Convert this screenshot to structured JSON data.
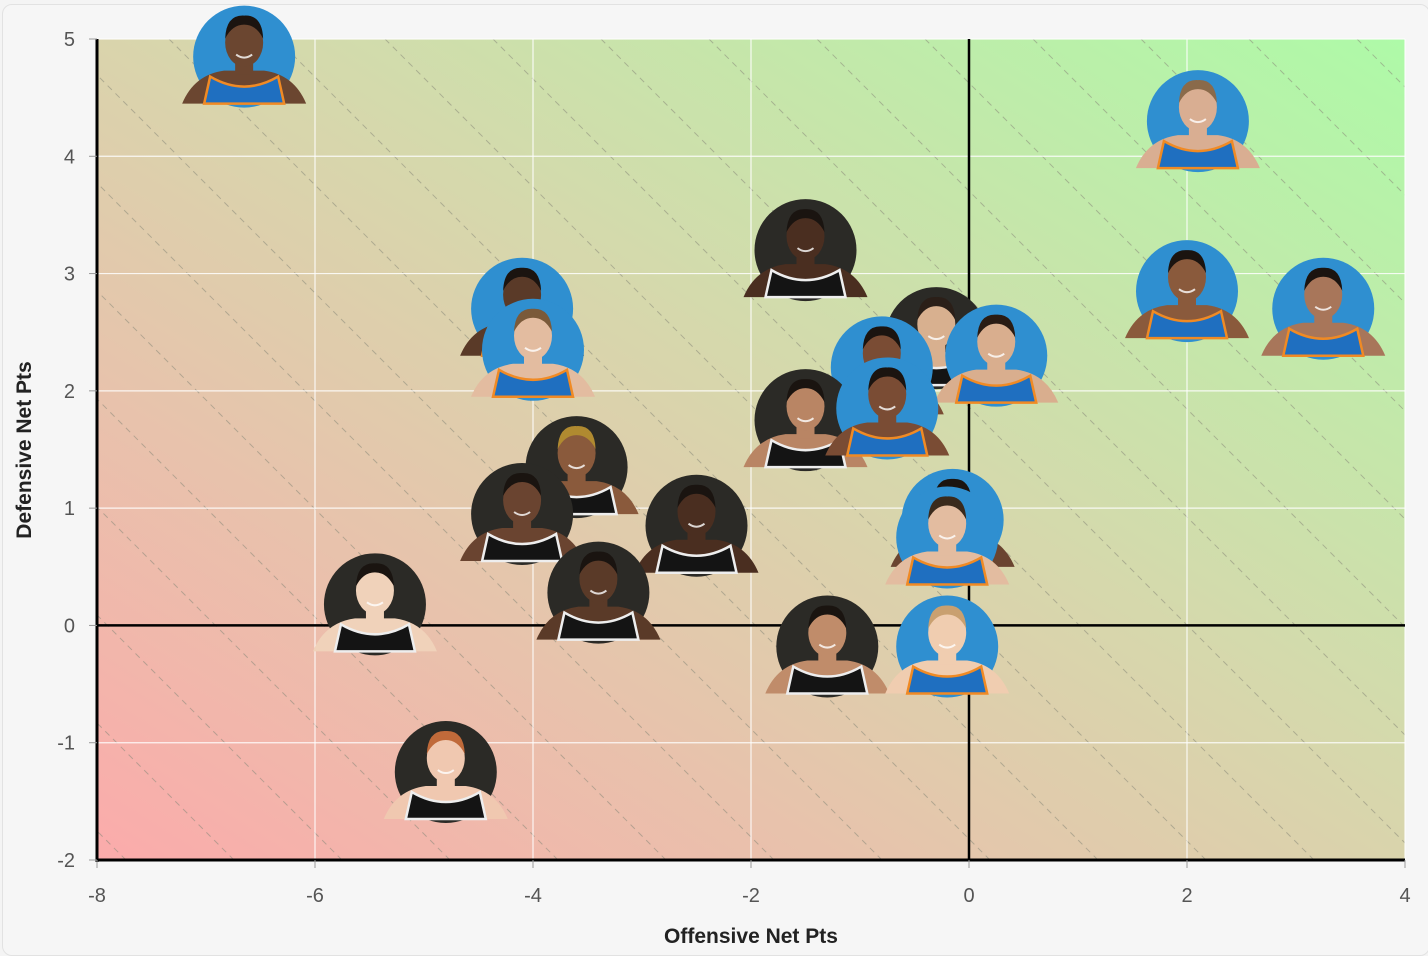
{
  "chart_data": {
    "type": "scatter",
    "xlabel": "Offensive Net Pts",
    "ylabel": "Defensive Net Pts",
    "xlim": [
      -8,
      4
    ],
    "ylim": [
      -2,
      5
    ],
    "xticks": [
      "-8",
      "-6",
      "-4",
      "-2",
      "0",
      "2",
      "4"
    ],
    "yticks": [
      "-2",
      "-1",
      "0",
      "1",
      "2",
      "3",
      "4",
      "5"
    ],
    "grid": true,
    "background": "diagonal gradient from red (low offense and defense) to green (high offense and defense), dashed diagonal guide lines",
    "team_colors": {
      "blue_team": "#2f8fd0",
      "dark_team": "#2b2a26"
    },
    "points": [
      {
        "x": -6.65,
        "y": 4.85,
        "team": "blue",
        "skin": "#6b4630",
        "hair": "#1b1410"
      },
      {
        "x": 2.1,
        "y": 4.3,
        "team": "blue",
        "skin": "#d9ae92",
        "hair": "#8a6a4a"
      },
      {
        "x": -1.5,
        "y": 3.2,
        "team": "dark",
        "skin": "#4a2e20",
        "hair": "#1a1410"
      },
      {
        "x": 2.0,
        "y": 2.85,
        "team": "blue",
        "skin": "#8a5a3c",
        "hair": "#1b1410"
      },
      {
        "x": 3.25,
        "y": 2.7,
        "team": "blue",
        "skin": "#a8765a",
        "hair": "#1b1410"
      },
      {
        "x": -4.1,
        "y": 2.7,
        "team": "blue",
        "skin": "#5a3a28",
        "hair": "#1b1410"
      },
      {
        "x": -4.0,
        "y": 2.35,
        "team": "blue",
        "skin": "#e3bca0",
        "hair": "#7a5a3a"
      },
      {
        "x": -0.3,
        "y": 2.45,
        "team": "dark",
        "skin": "#d8b08f",
        "hair": "#2b1f18"
      },
      {
        "x": -0.8,
        "y": 2.2,
        "team": "blue",
        "skin": "#7a4c34",
        "hair": "#1b1410"
      },
      {
        "x": 0.25,
        "y": 2.3,
        "team": "blue",
        "skin": "#d9ae8e",
        "hair": "#2a1c14"
      },
      {
        "x": -1.5,
        "y": 1.75,
        "team": "dark",
        "skin": "#b98564",
        "hair": "#1a1410"
      },
      {
        "x": -0.75,
        "y": 1.85,
        "team": "blue",
        "skin": "#7a4c34",
        "hair": "#1b1410"
      },
      {
        "x": -3.6,
        "y": 1.35,
        "team": "dark",
        "skin": "#8a5a3c",
        "hair": "#b08a30"
      },
      {
        "x": -4.1,
        "y": 0.95,
        "team": "dark",
        "skin": "#6a4430",
        "hair": "#1a1410"
      },
      {
        "x": -2.5,
        "y": 0.85,
        "team": "dark",
        "skin": "#4a2e20",
        "hair": "#1a1410"
      },
      {
        "x": -0.15,
        "y": 0.9,
        "team": "blue",
        "skin": "#6a4430",
        "hair": "#1b1410"
      },
      {
        "x": -0.2,
        "y": 0.75,
        "team": "blue",
        "skin": "#e3bca0",
        "hair": "#3a2a1c"
      },
      {
        "x": -3.4,
        "y": 0.28,
        "team": "dark",
        "skin": "#5a3a28",
        "hair": "#1a1410"
      },
      {
        "x": -5.45,
        "y": 0.18,
        "team": "dark",
        "skin": "#f0d2ba",
        "hair": "#1a1410"
      },
      {
        "x": -1.3,
        "y": -0.18,
        "team": "dark",
        "skin": "#c08c6a",
        "hair": "#1a1410"
      },
      {
        "x": -0.2,
        "y": -0.18,
        "team": "blue",
        "skin": "#f0cdb0",
        "hair": "#c9a070"
      },
      {
        "x": -4.8,
        "y": -1.25,
        "team": "dark",
        "skin": "#f0c8b0",
        "hair": "#c06a3a"
      }
    ]
  }
}
